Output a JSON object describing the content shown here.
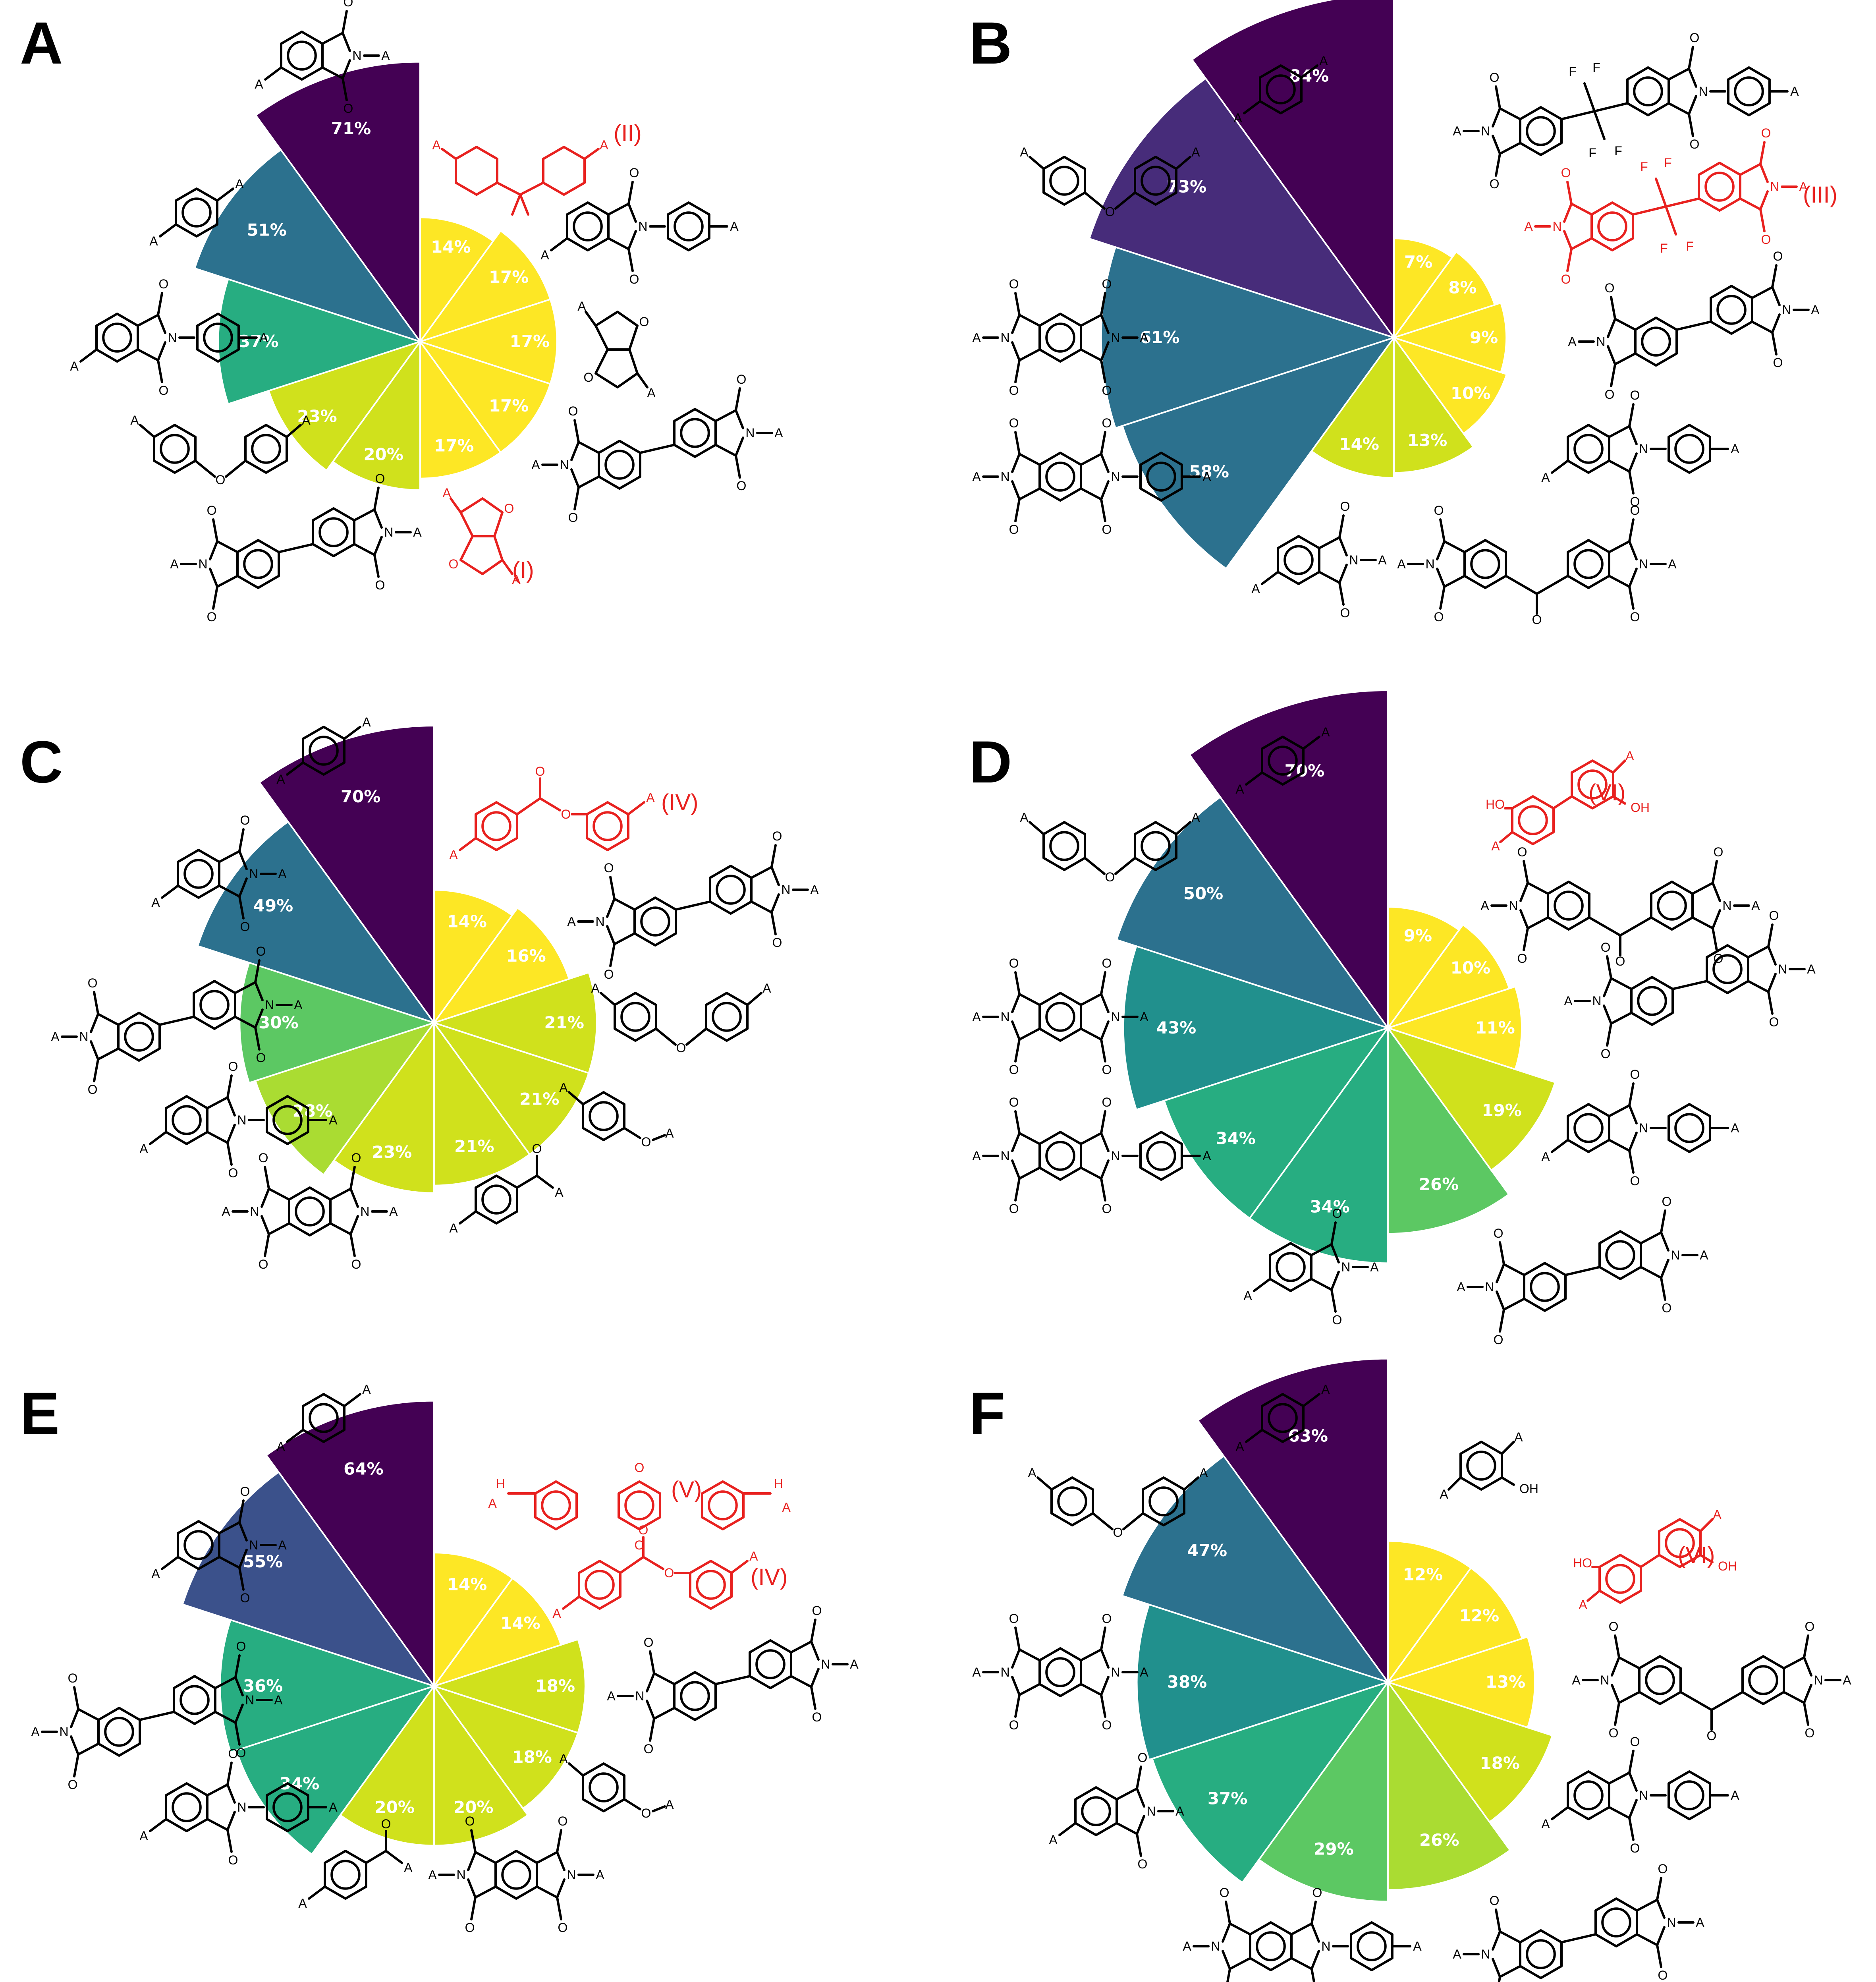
{
  "colors": {
    "text_black": "#000000",
    "highlight_red": "#e8211f",
    "viridis": [
      "#440154",
      "#472c7a",
      "#3b518b",
      "#2c718e",
      "#21908d",
      "#27ad81",
      "#5cc863",
      "#aadc32",
      "#d0e11c",
      "#fde725"
    ]
  },
  "chart_data": [
    {
      "panel": "A",
      "type": "pie",
      "values": [
        71,
        51,
        37,
        23,
        20,
        17,
        17,
        17,
        17,
        14
      ],
      "labels": [
        "71%",
        "51%",
        "37%",
        "23%",
        "20%",
        "17%",
        "17%",
        "17%",
        "17%",
        "14%"
      ],
      "red_labels": [
        "(II)",
        "(I)"
      ],
      "structures": [
        "imide-aryl",
        "phenylene",
        "imide-phenyl",
        "diphenyl-ether",
        "biphenyl-diimide",
        "isosorbide-red",
        "cyclohexyl-red",
        "imide-oxy-phenyl",
        "isosorbide-imide",
        "isosorbide-diimide"
      ]
    },
    {
      "panel": "B",
      "type": "pie",
      "values": [
        84,
        73,
        61,
        58,
        14,
        13,
        10,
        9,
        8,
        7
      ],
      "labels": [
        "84%",
        "73%",
        "61%",
        "58%",
        "14%",
        "13%",
        "10%",
        "9%",
        "8%",
        "7%"
      ],
      "red_labels": [
        "(III)"
      ],
      "structures": [
        "phenylene",
        "diphenyl-ether",
        "pyromellitic-diimide",
        "pyromellitic-phenyl",
        "imide-aryl",
        "benzophenone-diimide",
        "imide-phenyl",
        "biphenyl-diimide",
        "6f-diimide-red",
        "6f-imide-phenyl"
      ]
    },
    {
      "panel": "C",
      "type": "pie",
      "values": [
        70,
        49,
        30,
        28,
        23,
        21,
        21,
        21,
        16,
        14
      ],
      "labels": [
        "70%",
        "49%",
        "30%",
        "28%",
        "23%",
        "21%",
        "21%",
        "21%",
        "16%",
        "14%"
      ],
      "red_labels": [
        "(IV)"
      ],
      "structures": [
        "phenylene",
        "imide-aryl",
        "biphenyl-diimide",
        "imide-phenyl",
        "pyromellitic-diimide",
        "benzoyl",
        "phenoxy",
        "diphenyl-ether",
        "biphenyl-imide-phenyl",
        "ester-red"
      ]
    },
    {
      "panel": "D",
      "type": "pie",
      "values": [
        70,
        50,
        43,
        34,
        34,
        26,
        19,
        11,
        10,
        9
      ],
      "labels": [
        "70%",
        "50%",
        "43%",
        "34%",
        "34%",
        "26%",
        "19%",
        "11%",
        "10%",
        "9%"
      ],
      "red_labels": [
        "(VI)"
      ],
      "structures": [
        "phenylene",
        "diphenyl-ether",
        "pyromellitic-diimide",
        "pyromellitic-phenyl",
        "imide-aryl",
        "biphenyl-diimide",
        "imide-phenyl",
        "biphenyl-imide-phenyl",
        "benzophenone-diimide",
        "dihydroxybiphenyl-red"
      ]
    },
    {
      "panel": "E",
      "type": "pie",
      "values": [
        64,
        55,
        36,
        34,
        20,
        20,
        18,
        18,
        14,
        14
      ],
      "labels": [
        "64%",
        "55%",
        "36%",
        "34%",
        "20%",
        "20%",
        "18%",
        "18%",
        "14%",
        "14%"
      ],
      "red_labels": [
        "(V)",
        "(IV)"
      ],
      "structures": [
        "phenylene",
        "imide-aryl",
        "biphenyl-diimide",
        "imide-phenyl",
        "benzoyl",
        "pyromellitic-diimide",
        "phenoxy",
        "biphenyl-imide-phenyl",
        "ester-red",
        "xanthone-red"
      ]
    },
    {
      "panel": "F",
      "type": "pie",
      "values": [
        63,
        47,
        38,
        37,
        29,
        26,
        18,
        13,
        12,
        12
      ],
      "labels": [
        "63%",
        "47%",
        "38%",
        "37%",
        "29%",
        "26%",
        "18%",
        "13%",
        "12%",
        "12%"
      ],
      "red_labels": [
        "(VI)"
      ],
      "structures": [
        "phenylene",
        "diphenyl-ether",
        "pyromellitic-diimide",
        "imide-aryl",
        "pyromellitic-phenyl",
        "biphenyl-diimide",
        "imide-phenyl",
        "benzophenone-diimide",
        "dihydroxybiphenyl-red",
        "hydroxyphenyl"
      ]
    }
  ],
  "atom_labels": {
    "A": "A",
    "N": "N",
    "O": "O",
    "F": "F",
    "OH": "OH",
    "HO": "HO",
    "H": "H",
    "N_A": "N–A",
    "A_N": "A–N"
  }
}
